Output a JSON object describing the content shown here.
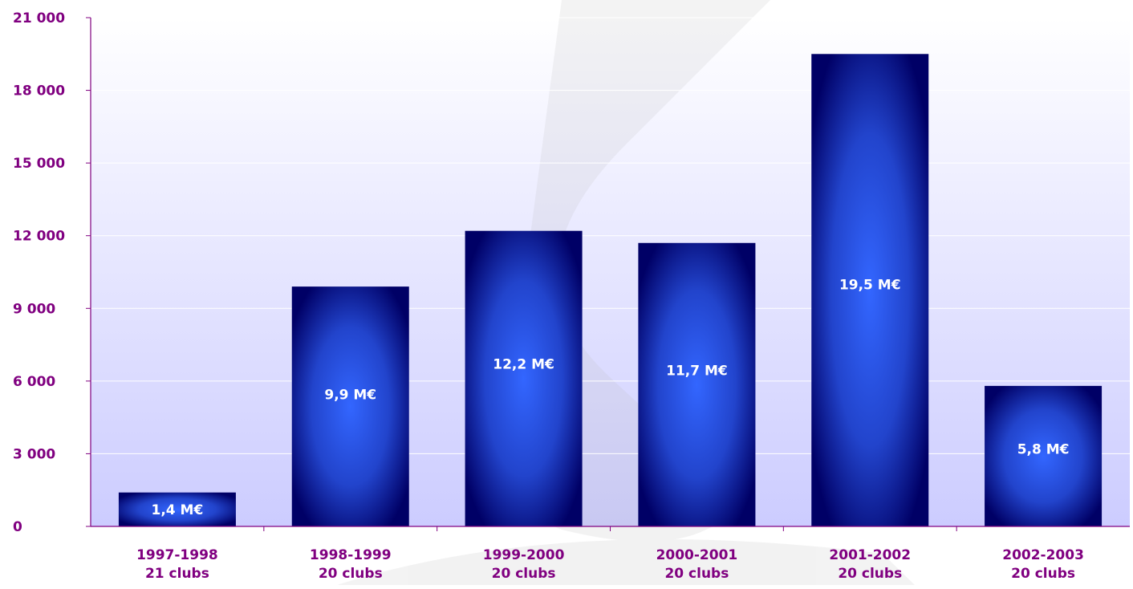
{
  "chart_data": {
    "type": "bar",
    "categories": [
      "1997-1998\n21 clubs",
      "1998-1999\n20 clubs",
      "1999-2000\n20 clubs",
      "2000-2001\n20 clubs",
      "2001-2002\n20 clubs",
      "2002-2003\n20 clubs"
    ],
    "values": [
      1400,
      9900,
      12200,
      11700,
      19500,
      5800
    ],
    "data_labels": [
      "1,4 M€",
      "9,9 M€",
      "12,2 M€",
      "11,7 M€",
      "19,5 M€",
      "5,8 M€"
    ],
    "ylim": [
      0,
      21000
    ],
    "yticks": [
      0,
      3000,
      6000,
      9000,
      12000,
      15000,
      18000,
      21000
    ],
    "ytick_labels": [
      "0",
      "3 000",
      "6 000",
      "9 000",
      "12 000",
      "15 000",
      "18 000",
      "21 000"
    ],
    "grid": true,
    "legend": "none",
    "title": "",
    "xlabel": "",
    "ylabel": ""
  },
  "colors": {
    "axis_text": "#800080",
    "axis_line": "#800080",
    "label_text": "#ffffff",
    "bar_edge": "#000066",
    "bar_center": "#3366ff",
    "plot_top": "#ffffff",
    "plot_bottom": "#ccccff",
    "gridline": "#ffffff"
  }
}
